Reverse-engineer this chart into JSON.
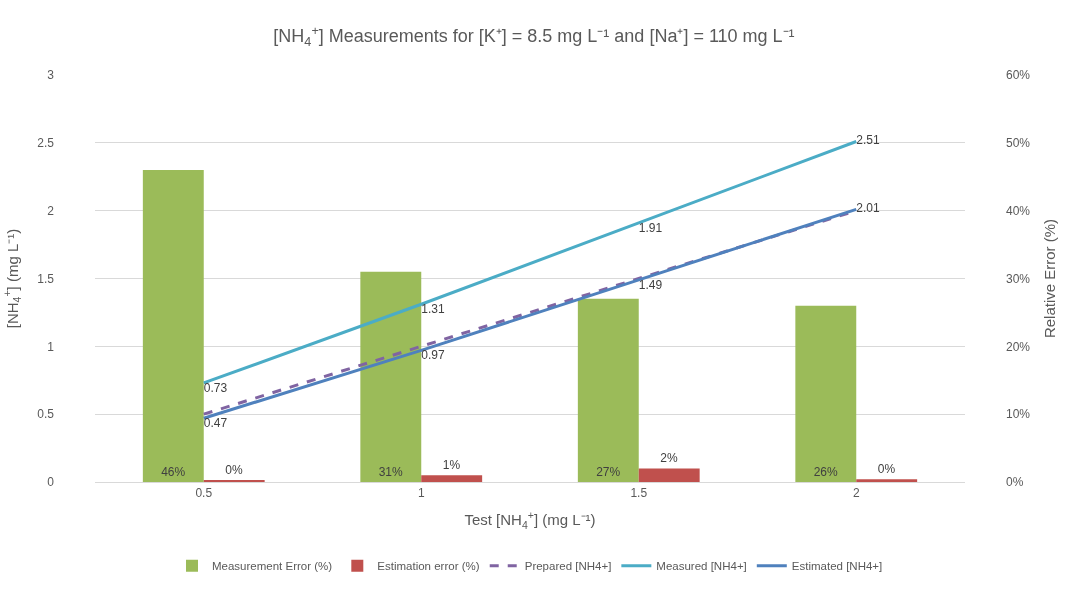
{
  "chart_data": {
    "type": "bar",
    "title": "[NH$_{4}$$^{+}$] Measurements for [K⁺] = 8.5 mg L⁻¹ and [Na⁺] = 110 mg L⁻¹",
    "xlabel": "Test [NH$_{4}$$^{+}$] (mg L⁻¹)",
    "ylabel": "[NH$_{4}$$^{+}$] (mg L⁻¹)",
    "y2label": "Relative Error (%)",
    "categories": [
      "0.5",
      "1",
      "1.5",
      "2"
    ],
    "series": [
      {
        "name": "Measurement Error (%)",
        "axis": "y2",
        "color": "#9bbb59",
        "values": [
          46,
          31,
          27,
          26
        ],
        "value_labels": [
          "46%",
          "31%",
          "27%",
          "26%"
        ]
      },
      {
        "name": "Estimation error (%)",
        "axis": "y2",
        "color": "#c0504d",
        "values": [
          0.2,
          1,
          2,
          0.4
        ],
        "value_labels": [
          "0%",
          "1%",
          "2%",
          "0%"
        ]
      },
      {
        "name": "Prepared [NH4+]",
        "type": "line",
        "color": "#8064a2",
        "line_style": "dashed",
        "values": [
          0.5,
          1,
          1.5,
          2
        ]
      },
      {
        "name": "Measured [NH4+]",
        "type": "line",
        "color": "#4bacc6",
        "line_style": "solid",
        "values": [
          0.73,
          1.31,
          1.91,
          2.51
        ],
        "value_labels": [
          "0.73",
          "1.31",
          "1.91",
          "2.51"
        ]
      },
      {
        "name": "Estimated [NH4+]",
        "type": "line",
        "color": "#4f81bd",
        "line_style": "solid",
        "values": [
          0.47,
          0.97,
          1.49,
          2.01
        ],
        "value_labels": [
          "0.47",
          "0.97",
          "1.49",
          "2.01"
        ]
      }
    ],
    "ylim": [
      0,
      3
    ],
    "yticks": [
      0,
      0.5,
      1,
      1.5,
      2,
      2.5,
      3
    ],
    "y2lim": [
      0,
      60
    ],
    "y2ticks": [
      {
        "value": 0,
        "label": "0%"
      },
      {
        "value": 10,
        "label": "10%"
      },
      {
        "value": 20,
        "label": "20%"
      },
      {
        "value": 30,
        "label": "30%"
      },
      {
        "value": 40,
        "label": "40%"
      },
      {
        "value": 50,
        "label": "50%"
      },
      {
        "value": 60,
        "label": "60%"
      }
    ],
    "grid": "y",
    "legend": "bottom",
    "marker": "none"
  }
}
